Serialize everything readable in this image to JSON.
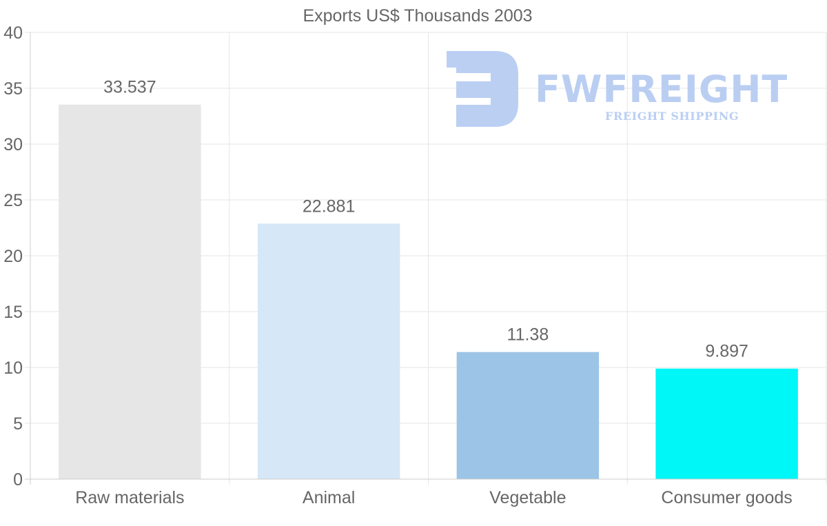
{
  "watermark": {
    "brand": "FWFREIGHT",
    "tagline": "FREIGHT SHIPPING"
  },
  "chart_data": {
    "type": "bar",
    "title": "Exports US$ Thousands 2003",
    "categories": [
      "Raw materials",
      "Animal",
      "Vegetable",
      "Consumer goods"
    ],
    "values": [
      33.537,
      22.881,
      11.38,
      9.897
    ],
    "value_labels": [
      "33.537",
      "22.881",
      "11.38",
      "9.897"
    ],
    "bar_colors": [
      "#e6e6e6",
      "#d6e8f8",
      "#9cc4e6",
      "#00f7f7"
    ],
    "ylim": [
      0,
      40
    ],
    "yticks": [
      0,
      5,
      10,
      15,
      20,
      25,
      30,
      35,
      40
    ],
    "xlabel": "",
    "ylabel": "",
    "grid": true,
    "legend": "none"
  }
}
